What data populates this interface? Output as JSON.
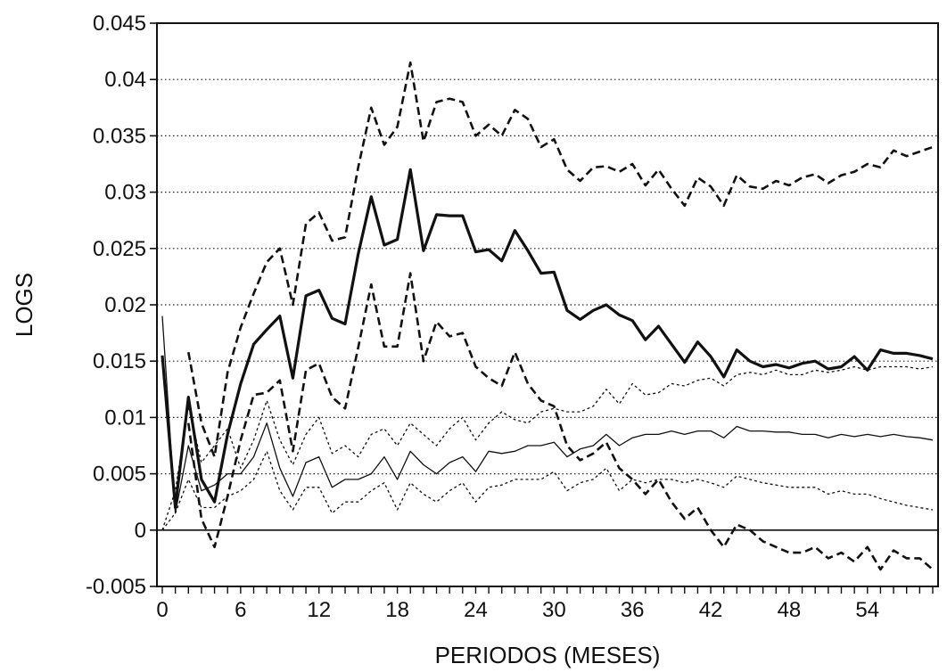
{
  "chart_data": {
    "type": "line",
    "title": "",
    "xlabel": "PERIODOS (MESES)",
    "ylabel": "LOGS",
    "xlim": [
      0,
      59
    ],
    "ylim": [
      -0.005,
      0.045
    ],
    "x_ticks": [
      0,
      6,
      12,
      18,
      24,
      30,
      36,
      42,
      48,
      54
    ],
    "y_ticks": [
      -0.005,
      0,
      0.005,
      0.01,
      0.015,
      0.02,
      0.025,
      0.03,
      0.035,
      0.04,
      0.045
    ],
    "y_tick_labels": [
      "-0.005",
      "0",
      "0.005",
      "0.01",
      "0.015",
      "0.02",
      "0.025",
      "0.03",
      "0.035",
      "0.04",
      "0.045"
    ],
    "grid": {
      "horizontal": true,
      "style": "dotted"
    },
    "x": [
      0,
      1,
      2,
      3,
      4,
      5,
      6,
      7,
      8,
      9,
      10,
      11,
      12,
      13,
      14,
      15,
      16,
      17,
      18,
      19,
      20,
      21,
      22,
      23,
      24,
      25,
      26,
      27,
      28,
      29,
      30,
      31,
      32,
      33,
      34,
      35,
      36,
      37,
      38,
      39,
      40,
      41,
      42,
      43,
      44,
      45,
      46,
      47,
      48,
      49,
      50,
      51,
      52,
      53,
      54,
      55,
      56,
      57,
      58,
      59
    ],
    "series": [
      {
        "style": "thick-solid",
        "values": [
          0.0155,
          0.002,
          0.0118,
          0.0045,
          0.0025,
          0.0085,
          0.013,
          0.0165,
          0.0178,
          0.019,
          0.0135,
          0.0208,
          0.0213,
          0.0188,
          0.0183,
          0.0245,
          0.0296,
          0.0253,
          0.0258,
          0.032,
          0.0248,
          0.028,
          0.0279,
          0.0279,
          0.0247,
          0.0249,
          0.0239,
          0.0266,
          0.0248,
          0.0228,
          0.0229,
          0.0195,
          0.0187,
          0.0195,
          0.02,
          0.0191,
          0.0186,
          0.0169,
          0.0181,
          0.0165,
          0.0149,
          0.0167,
          0.0154,
          0.0136,
          0.016,
          0.015,
          0.0145,
          0.0147,
          0.0144,
          0.0148,
          0.015,
          0.0143,
          0.0145,
          0.0154,
          0.0142,
          0.016,
          0.0157,
          0.0157,
          0.0155,
          0.0152
        ]
      },
      {
        "style": "dashed-upper",
        "values": [
          null,
          null,
          0.0158,
          0.0095,
          0.0065,
          0.014,
          0.018,
          0.021,
          0.0238,
          0.025,
          0.02,
          0.0272,
          0.0282,
          0.0257,
          0.026,
          0.0322,
          0.0375,
          0.0342,
          0.0358,
          0.0415,
          0.0345,
          0.038,
          0.0383,
          0.038,
          0.035,
          0.036,
          0.035,
          0.0373,
          0.0365,
          0.034,
          0.0347,
          0.032,
          0.031,
          0.0322,
          0.0323,
          0.0318,
          0.0325,
          0.0306,
          0.032,
          0.0303,
          0.0288,
          0.0313,
          0.0305,
          0.0288,
          0.0315,
          0.0305,
          0.0303,
          0.031,
          0.0306,
          0.0313,
          0.0316,
          0.0308,
          0.0315,
          0.0318,
          0.0325,
          0.0322,
          0.0337,
          0.0332,
          0.0336,
          0.034
        ]
      },
      {
        "style": "dashed-lower",
        "values": [
          null,
          null,
          0.0095,
          0.001,
          -0.0015,
          0.003,
          0.008,
          0.012,
          0.0122,
          0.0133,
          0.007,
          0.0142,
          0.0148,
          0.0118,
          0.0108,
          0.0162,
          0.0218,
          0.0163,
          0.0163,
          0.0228,
          0.015,
          0.0185,
          0.0172,
          0.0175,
          0.0145,
          0.0135,
          0.0128,
          0.0158,
          0.013,
          0.0115,
          0.011,
          0.0075,
          0.0062,
          0.0068,
          0.0078,
          0.0055,
          0.0045,
          0.0032,
          0.0045,
          0.0025,
          0.001,
          0.002,
          0.0,
          -0.0015,
          0.0005,
          0.0,
          -0.001,
          -0.0015,
          -0.002,
          -0.002,
          -0.0015,
          -0.0025,
          -0.002,
          -0.0028,
          -0.0015,
          -0.0035,
          -0.0018,
          -0.0025,
          -0.0025,
          -0.0035
        ]
      },
      {
        "style": "thin-solid",
        "values": [
          0.019,
          0.0015,
          0.0075,
          0.0035,
          0.004,
          0.005,
          0.005,
          0.0065,
          0.0095,
          0.0055,
          0.003,
          0.006,
          0.0065,
          0.0038,
          0.0045,
          0.0045,
          0.005,
          0.0065,
          0.0045,
          0.007,
          0.0058,
          0.005,
          0.006,
          0.0065,
          0.0052,
          0.007,
          0.0068,
          0.007,
          0.0075,
          0.0075,
          0.0078,
          0.0065,
          0.0072,
          0.0075,
          0.0085,
          0.0075,
          0.0082,
          0.0085,
          0.0085,
          0.0088,
          0.0085,
          0.0088,
          0.0088,
          0.0082,
          0.0092,
          0.0088,
          0.0088,
          0.0087,
          0.0087,
          0.0085,
          0.0085,
          0.0082,
          0.0085,
          0.0083,
          0.0085,
          0.0083,
          0.0085,
          0.0083,
          0.0082,
          0.008
        ]
      },
      {
        "style": "dotted-upper",
        "values": [
          0.0,
          0.0035,
          0.011,
          0.006,
          0.0075,
          0.009,
          0.0055,
          0.008,
          0.0115,
          0.008,
          0.0058,
          0.0085,
          0.01,
          0.0068,
          0.0075,
          0.0065,
          0.0085,
          0.009,
          0.0075,
          0.0095,
          0.0085,
          0.0075,
          0.009,
          0.01,
          0.008,
          0.0095,
          0.0105,
          0.0098,
          0.0095,
          0.0105,
          0.0108,
          0.0105,
          0.0105,
          0.011,
          0.0125,
          0.0112,
          0.013,
          0.012,
          0.0122,
          0.013,
          0.0128,
          0.0133,
          0.0135,
          0.0128,
          0.0138,
          0.014,
          0.0138,
          0.0142,
          0.0138,
          0.0138,
          0.0142,
          0.014,
          0.0142,
          0.0145,
          0.0142,
          0.0145,
          0.0145,
          0.0145,
          0.0143,
          0.0145
        ]
      },
      {
        "style": "dotted-lower",
        "values": [
          0.0,
          0.0015,
          0.0045,
          0.002,
          0.002,
          0.003,
          0.0035,
          0.0045,
          0.007,
          0.0035,
          0.0018,
          0.0038,
          0.0038,
          0.0015,
          0.0025,
          0.0025,
          0.0035,
          0.0042,
          0.0018,
          0.0042,
          0.0032,
          0.0025,
          0.0035,
          0.0042,
          0.0025,
          0.0038,
          0.004,
          0.0045,
          0.0045,
          0.0045,
          0.0052,
          0.0035,
          0.0042,
          0.0045,
          0.0055,
          0.0035,
          0.0045,
          0.0042,
          0.0045,
          0.0045,
          0.0042,
          0.0045,
          0.0042,
          0.0038,
          0.0048,
          0.0045,
          0.0042,
          0.004,
          0.0038,
          0.0038,
          0.0038,
          0.0032,
          0.0035,
          0.0032,
          0.0032,
          0.0028,
          0.0025,
          0.0022,
          0.002,
          0.0018
        ]
      }
    ]
  }
}
